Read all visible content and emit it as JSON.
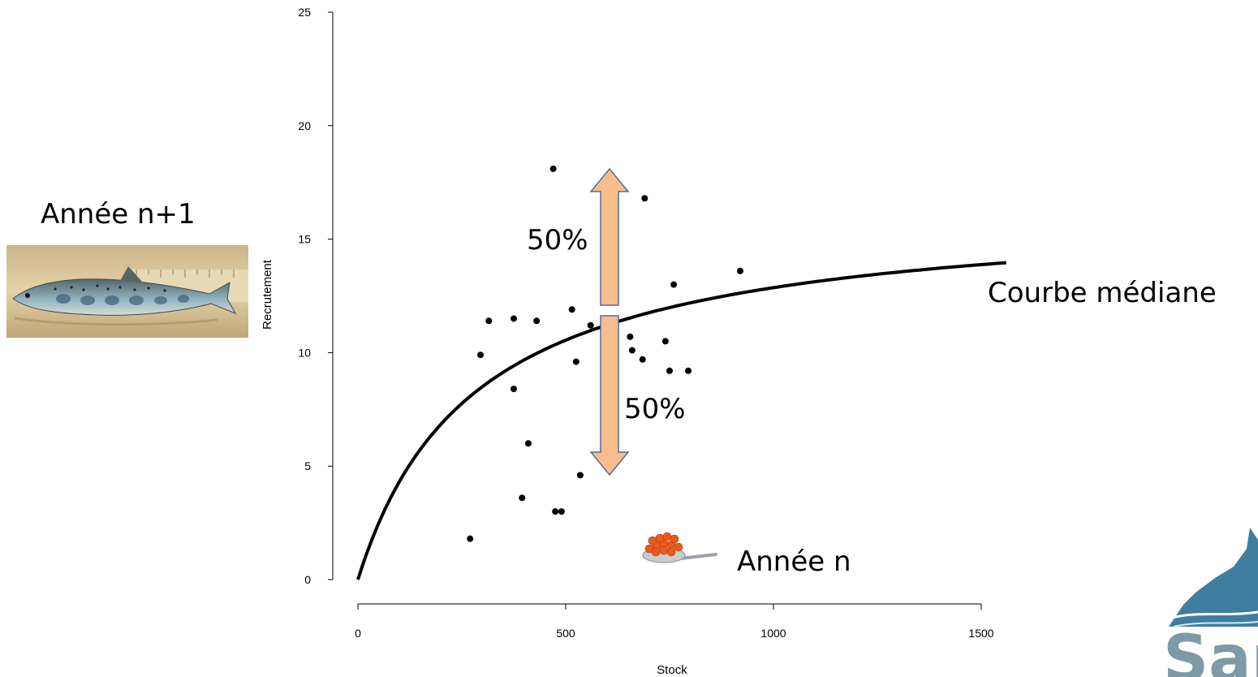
{
  "chart_data": {
    "type": "scatter",
    "xlabel": "Stock",
    "ylabel": "Recrutement",
    "xlim": [
      0,
      1500
    ],
    "ylim": [
      0,
      25
    ],
    "x_ticks": [
      "0",
      "500",
      "1000",
      "1500"
    ],
    "y_ticks": [
      "0",
      "5",
      "10",
      "15",
      "20",
      "25"
    ],
    "grid": false,
    "points": [
      {
        "x": 270,
        "y": 1.8
      },
      {
        "x": 295,
        "y": 9.9
      },
      {
        "x": 315,
        "y": 11.4
      },
      {
        "x": 375,
        "y": 8.4
      },
      {
        "x": 375,
        "y": 11.5
      },
      {
        "x": 395,
        "y": 3.6
      },
      {
        "x": 410,
        "y": 6.0
      },
      {
        "x": 430,
        "y": 11.4
      },
      {
        "x": 470,
        "y": 18.1
      },
      {
        "x": 475,
        "y": 3.0
      },
      {
        "x": 490,
        "y": 3.0
      },
      {
        "x": 515,
        "y": 11.9
      },
      {
        "x": 525,
        "y": 9.6
      },
      {
        "x": 535,
        "y": 4.6
      },
      {
        "x": 560,
        "y": 11.2
      },
      {
        "x": 655,
        "y": 10.7
      },
      {
        "x": 660,
        "y": 10.1
      },
      {
        "x": 685,
        "y": 9.7
      },
      {
        "x": 690,
        "y": 16.8
      },
      {
        "x": 740,
        "y": 10.5
      },
      {
        "x": 750,
        "y": 9.2
      },
      {
        "x": 760,
        "y": 13.0
      },
      {
        "x": 795,
        "y": 9.2
      },
      {
        "x": 920,
        "y": 13.6
      }
    ],
    "curve": {
      "name": "Courbe médiane",
      "model": "beverton-holt",
      "a": 16.48,
      "b": 281.2,
      "x_range": [
        0,
        1560
      ]
    }
  },
  "annotations": {
    "up_percent": "50%",
    "down_percent": "50%",
    "curve_label": "Courbe médiane",
    "year_next_label": "Année n+1",
    "year_current_label": "Année n",
    "logo_text": "Sam"
  },
  "colors": {
    "arrow_fill": "#f8bd8a",
    "arrow_stroke": "#4a6fa8",
    "logo_blue": "#3f7ea0",
    "logo_grey": "#7e9aa6",
    "fish_bg": "#d9c49a",
    "eggs": "#ea5a1e"
  }
}
